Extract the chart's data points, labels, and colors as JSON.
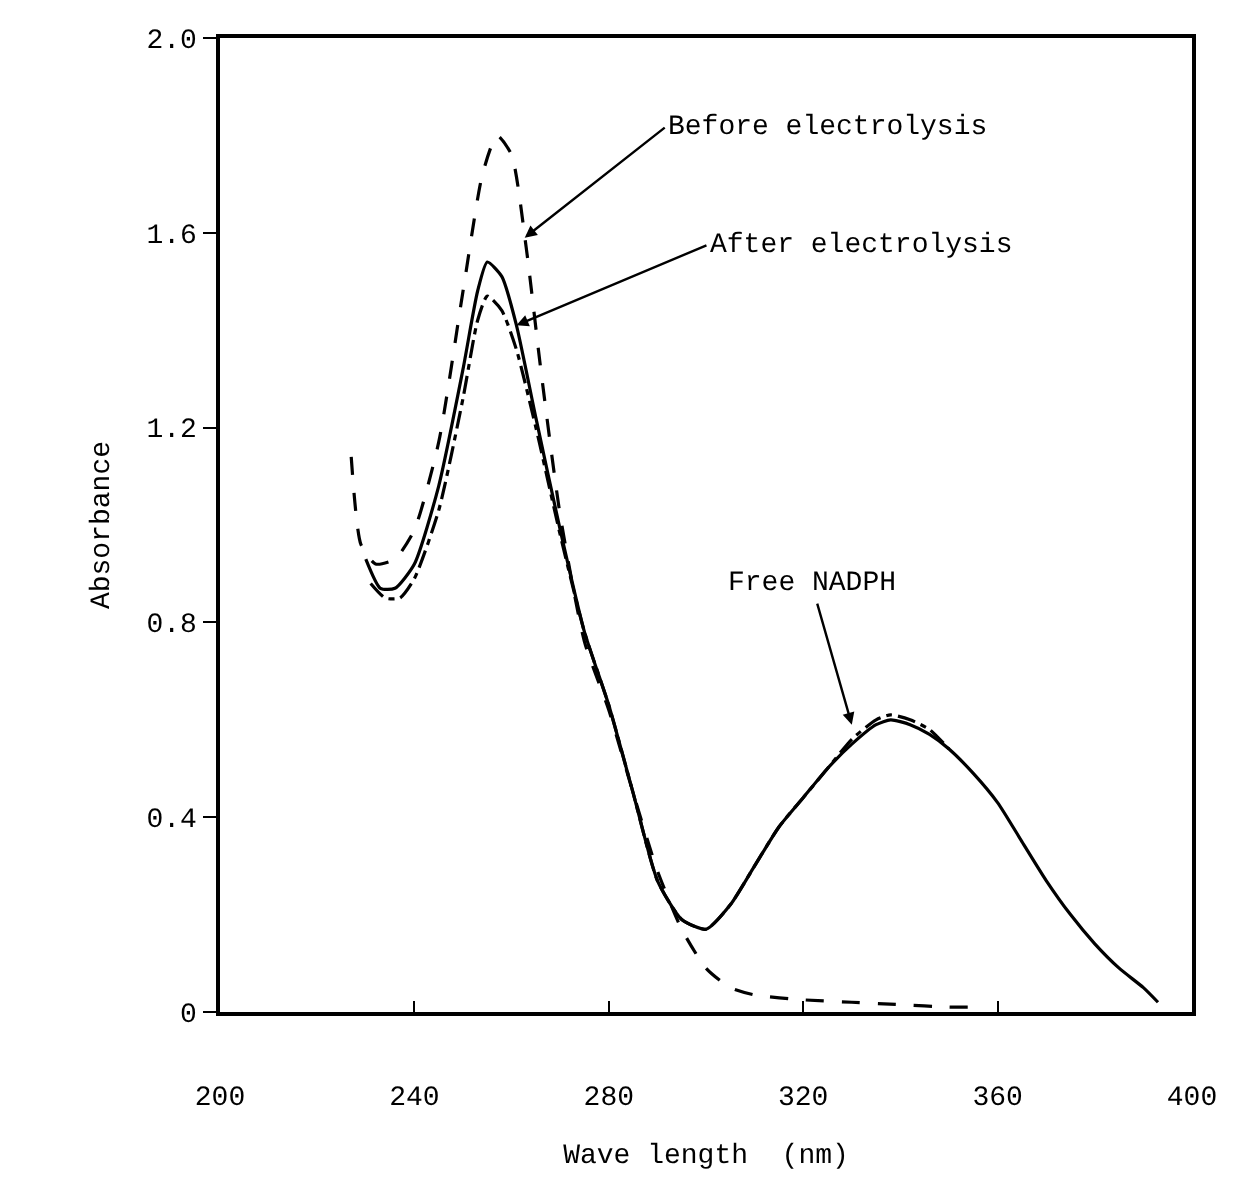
{
  "chart_data": {
    "type": "line",
    "xlabel": "Wave length  (nm)",
    "ylabel": "Absorbance",
    "xlim": [
      200,
      400
    ],
    "xticks": [
      200,
      240,
      280,
      320,
      360,
      400
    ],
    "ylim": [
      0,
      2.0
    ],
    "yticks": [
      0,
      0.4,
      0.8,
      1.2,
      1.6,
      {
        "value": 2.0,
        "label": "2.0"
      }
    ],
    "marker": "none",
    "series": [
      {
        "color": "#000000",
        "line_style": "dashed",
        "x": [
          227,
          229,
          232,
          236,
          240,
          245,
          250,
          254,
          257,
          260,
          263,
          266,
          270,
          275,
          280,
          285,
          290,
          295,
          300,
          305,
          310,
          320,
          330,
          340,
          350,
          356
        ],
        "values": [
          1.14,
          0.96,
          0.92,
          0.93,
          0.99,
          1.17,
          1.48,
          1.72,
          1.8,
          1.76,
          1.57,
          1.32,
          1.02,
          0.76,
          0.62,
          0.45,
          0.29,
          0.17,
          0.09,
          0.05,
          0.035,
          0.025,
          0.02,
          0.015,
          0.01,
          0.01
        ]
      },
      {
        "color": "#000000",
        "line_style": "solid",
        "x": [
          230,
          233,
          236,
          240,
          245,
          250,
          253,
          255,
          258,
          261,
          265,
          270,
          275,
          280,
          285,
          290,
          295,
          300,
          305,
          310,
          315,
          320,
          325,
          330,
          335,
          338,
          342,
          346,
          350,
          355,
          360,
          365,
          370,
          375,
          380,
          385,
          390,
          393
        ],
        "values": [
          0.93,
          0.87,
          0.87,
          0.92,
          1.08,
          1.32,
          1.48,
          1.54,
          1.51,
          1.41,
          1.22,
          0.99,
          0.78,
          0.63,
          0.45,
          0.27,
          0.19,
          0.17,
          0.22,
          0.3,
          0.38,
          0.44,
          0.5,
          0.55,
          0.59,
          0.6,
          0.59,
          0.57,
          0.54,
          0.49,
          0.43,
          0.35,
          0.27,
          0.2,
          0.14,
          0.09,
          0.05,
          0.02
        ]
      },
      {
        "color": "#000000",
        "line_style": "dashdot",
        "x": [
          231,
          234,
          237,
          240,
          245,
          250,
          253,
          255,
          258,
          261,
          265,
          270,
          275,
          280,
          285,
          290,
          295,
          300,
          305,
          310,
          315,
          320,
          325,
          330,
          335,
          338,
          342,
          346,
          350
        ],
        "values": [
          0.88,
          0.85,
          0.85,
          0.89,
          1.03,
          1.26,
          1.42,
          1.47,
          1.44,
          1.36,
          1.2,
          0.98,
          0.78,
          0.63,
          0.45,
          0.27,
          0.19,
          0.17,
          0.22,
          0.3,
          0.38,
          0.44,
          0.5,
          0.56,
          0.6,
          0.61,
          0.6,
          0.58,
          0.54
        ]
      }
    ],
    "annotations": [
      {
        "text": "Before electrolysis",
        "x": 262.7,
        "y": 1.59
      },
      {
        "text": "After electrolysis",
        "x": 261,
        "y": 1.41
      },
      {
        "text": "Free NADPH",
        "x": 330,
        "y": 0.59
      }
    ]
  }
}
